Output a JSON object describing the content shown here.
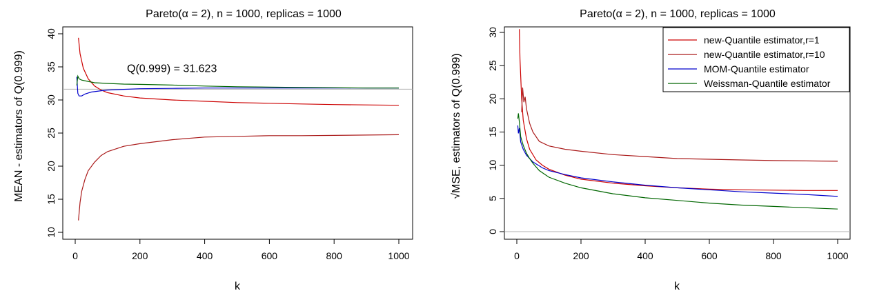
{
  "chart_data": [
    {
      "type": "line",
      "title": "Pareto(α = 2), n = 1000, replicas = 1000",
      "xlabel": "k",
      "ylabel": "MEAN - estimators of Q(0.999)",
      "xlim": [
        0,
        1000
      ],
      "ylim": [
        10,
        40
      ],
      "xticks": [
        0,
        200,
        400,
        600,
        800,
        1000
      ],
      "yticks": [
        10,
        15,
        20,
        25,
        30,
        35,
        40
      ],
      "reference_line": {
        "y": 31.623,
        "color": "#b0b0b0"
      },
      "annotation": {
        "text": "Q(0.999) = 31.623",
        "x": 160,
        "y": 34.2
      },
      "series": [
        {
          "name": "new-Quantile estimator,r=1",
          "color": "#cc0000",
          "x": [
            10,
            15,
            25,
            40,
            60,
            80,
            100,
            150,
            200,
            300,
            400,
            500,
            600,
            700,
            800,
            900,
            1000
          ],
          "y": [
            39.4,
            37.0,
            34.8,
            33.2,
            32.1,
            31.5,
            31.1,
            30.6,
            30.3,
            30.0,
            29.8,
            29.6,
            29.5,
            29.4,
            29.3,
            29.25,
            29.2
          ]
        },
        {
          "name": "new-Quantile estimator,r=10",
          "color": "#aa1a1a",
          "x": [
            10,
            15,
            20,
            30,
            40,
            60,
            80,
            100,
            150,
            200,
            250,
            300,
            400,
            500,
            600,
            700,
            800,
            900,
            1000
          ],
          "y": [
            11.8,
            14.5,
            16.2,
            18.0,
            19.3,
            20.6,
            21.6,
            22.2,
            23.0,
            23.4,
            23.7,
            24.0,
            24.4,
            24.5,
            24.6,
            24.6,
            24.65,
            24.7,
            24.75
          ]
        },
        {
          "name": "MOM-Quantile estimator",
          "color": "#0000cc",
          "x": [
            5,
            8,
            12,
            20,
            30,
            50,
            80,
            100,
            150,
            200,
            300,
            400,
            500,
            600,
            700,
            800,
            900,
            1000
          ],
          "y": [
            33.5,
            31.0,
            30.6,
            30.6,
            30.9,
            31.2,
            31.4,
            31.5,
            31.6,
            31.7,
            31.75,
            31.8,
            31.8,
            31.8,
            31.8,
            31.8,
            31.8,
            31.8
          ]
        },
        {
          "name": "Weissman-Quantile estimator",
          "color": "#006600",
          "x": [
            5,
            8,
            12,
            20,
            40,
            60,
            100,
            150,
            200,
            300,
            400,
            500,
            600,
            700,
            800,
            900,
            1000
          ],
          "y": [
            32.2,
            33.6,
            33.2,
            33.0,
            32.8,
            32.6,
            32.5,
            32.4,
            32.35,
            32.25,
            32.1,
            32.0,
            31.95,
            31.9,
            31.85,
            31.8,
            31.8
          ]
        }
      ]
    },
    {
      "type": "line",
      "title": "Pareto(α = 2), n = 1000, replicas = 1000",
      "xlabel": "k",
      "ylabel": "√MSE, estimators of Q(0.999)",
      "xlim": [
        0,
        1000
      ],
      "ylim": [
        0,
        30
      ],
      "xticks": [
        0,
        200,
        400,
        600,
        800,
        1000
      ],
      "yticks": [
        0,
        5,
        10,
        15,
        20,
        25,
        30
      ],
      "reference_line": {
        "y": 0,
        "color": "#b0b0b0"
      },
      "legend": {
        "position": "top-right"
      },
      "series": [
        {
          "name": "new-Quantile estimator,r=1",
          "color": "#cc0000",
          "x": [
            8,
            10,
            15,
            20,
            30,
            40,
            60,
            80,
            100,
            150,
            200,
            300,
            400,
            500,
            600,
            700,
            800,
            900,
            1000
          ],
          "y": [
            30.5,
            26.0,
            20.0,
            16.8,
            14.0,
            12.4,
            10.8,
            10.0,
            9.4,
            8.5,
            7.9,
            7.3,
            6.9,
            6.6,
            6.4,
            6.3,
            6.25,
            6.2,
            6.2
          ]
        },
        {
          "name": "new-Quantile estimator,r=10",
          "color": "#aa1a1a",
          "x": [
            15,
            18,
            22,
            26,
            30,
            40,
            50,
            70,
            100,
            150,
            200,
            300,
            400,
            500,
            600,
            700,
            800,
            900,
            1000
          ],
          "y": [
            18.0,
            21.7,
            19.5,
            20.3,
            18.5,
            16.3,
            15.0,
            13.6,
            12.9,
            12.4,
            12.1,
            11.6,
            11.3,
            11.0,
            10.9,
            10.8,
            10.7,
            10.65,
            10.6
          ]
        },
        {
          "name": "MOM-Quantile estimator",
          "color": "#0000cc",
          "x": [
            3,
            5,
            8,
            12,
            20,
            30,
            50,
            80,
            100,
            150,
            200,
            300,
            400,
            500,
            600,
            700,
            800,
            900,
            1000
          ],
          "y": [
            16.0,
            14.8,
            15.6,
            13.5,
            12.4,
            11.5,
            10.5,
            9.6,
            9.2,
            8.6,
            8.1,
            7.5,
            7.0,
            6.6,
            6.3,
            6.0,
            5.8,
            5.6,
            5.3
          ]
        },
        {
          "name": "Weissman-Quantile estimator",
          "color": "#006600",
          "x": [
            3,
            5,
            8,
            12,
            20,
            30,
            40,
            50,
            70,
            100,
            150,
            200,
            300,
            400,
            500,
            600,
            700,
            800,
            900,
            1000
          ],
          "y": [
            17.0,
            17.8,
            16.5,
            14.3,
            13.0,
            11.8,
            11.0,
            10.3,
            9.2,
            8.2,
            7.3,
            6.6,
            5.7,
            5.1,
            4.7,
            4.3,
            4.0,
            3.8,
            3.6,
            3.4
          ]
        }
      ]
    }
  ]
}
